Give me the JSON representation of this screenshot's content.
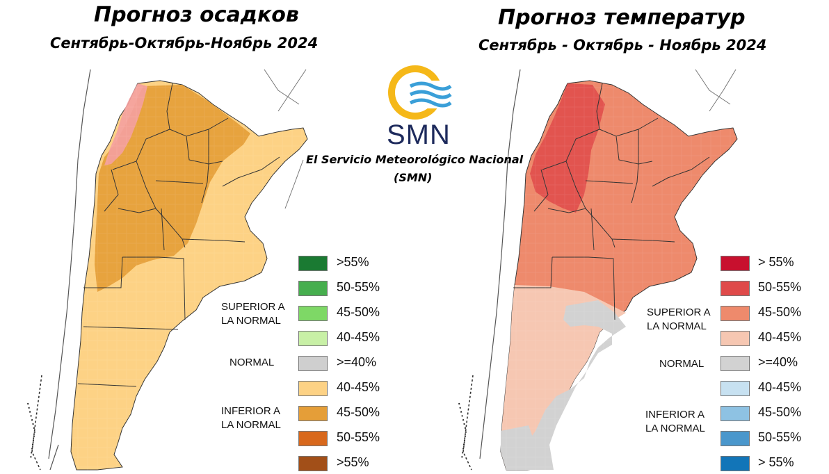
{
  "left_panel": {
    "title": "Прогноз осадков",
    "subtitle": "Сентябрь-Октябрь-Ноябрь 2024",
    "legend": {
      "superior_label_1": "SUPERIOR A",
      "superior_label_2": "LA NORMAL",
      "normal_label": "NORMAL",
      "inferior_label_1": "INFERIOR A",
      "inferior_label_2": "LA NORMAL",
      "items": [
        {
          "label": ">55%",
          "color": "#1a7a32"
        },
        {
          "label": "50-55%",
          "color": "#46ae4e"
        },
        {
          "label": "45-50%",
          "color": "#7ed866"
        },
        {
          "label": "40-45%",
          "color": "#c8f0a6"
        },
        {
          "label": ">=40%",
          "color": "#cfcfcf"
        },
        {
          "label": "40-45%",
          "color": "#fdd285"
        },
        {
          "label": "45-50%",
          "color": "#e59e38"
        },
        {
          "label": "50-55%",
          "color": "#d8681c"
        },
        {
          "label": ">55%",
          "color": "#a24f18"
        }
      ]
    }
  },
  "right_panel": {
    "title": "Прогноз температур",
    "subtitle": "Сентябрь - Октябрь - Ноябрь 2024",
    "legend": {
      "superior_label_1": "SUPERIOR A",
      "superior_label_2": "LA NORMAL",
      "normal_label": "NORMAL",
      "inferior_label_1": "INFERIOR A",
      "inferior_label_2": "LA NORMAL",
      "items": [
        {
          "label": "> 55%",
          "color": "#c8102e"
        },
        {
          "label": "50-55%",
          "color": "#df4a4a"
        },
        {
          "label": "45-50%",
          "color": "#ee8a6c"
        },
        {
          "label": "40-45%",
          "color": "#f6c7b2"
        },
        {
          "label": ">=40%",
          "color": "#d2d2d2"
        },
        {
          "label": "40-45%",
          "color": "#c7e1f1"
        },
        {
          "label": "45-50%",
          "color": "#8ec2e3"
        },
        {
          "label": "50-55%",
          "color": "#4a97cc"
        },
        {
          "label": "> 55%",
          "color": "#1275b8"
        }
      ]
    }
  },
  "center": {
    "logo_word": "SMN",
    "org_name": "El Servicio Meteorológico Nacional",
    "org_abbr": "(SMN)"
  }
}
